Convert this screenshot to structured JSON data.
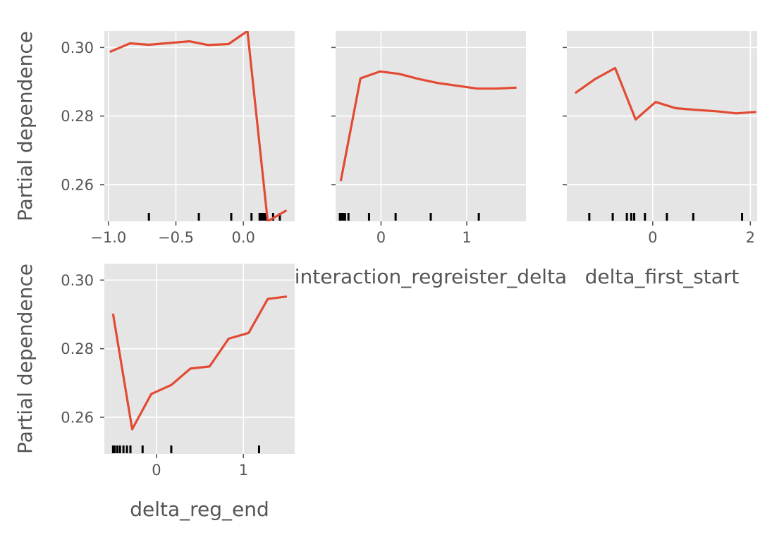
{
  "chart_data": [
    {
      "type": "line",
      "xlabel": "",
      "ylabel": "Partial dependence",
      "xlim": [
        -1.03,
        0.38
      ],
      "ylim": [
        0.2493,
        0.3048
      ],
      "xticks": [
        -1.0,
        -0.5,
        0.0
      ],
      "xtick_labels": [
        "−1.0",
        "−0.5",
        "0.0"
      ],
      "yticks": [
        0.26,
        0.28,
        0.3
      ],
      "ytick_labels": [
        "0.26",
        "0.28",
        "0.30"
      ],
      "show_ytick_labels": true,
      "line_color": "#E24A33",
      "series": [
        {
          "x": [
            -0.99,
            -0.84,
            -0.7,
            -0.55,
            -0.4,
            -0.26,
            -0.11,
            0.03,
            0.18,
            0.32
          ],
          "y": [
            0.2987,
            0.3012,
            0.3008,
            0.3013,
            0.3018,
            0.3007,
            0.301,
            0.3048,
            0.2493,
            0.2525
          ]
        }
      ],
      "rug": [
        -0.7,
        -0.33,
        -0.09,
        0.06,
        0.12,
        0.13,
        0.14,
        0.15,
        0.16,
        0.17,
        0.22,
        0.27
      ]
    },
    {
      "type": "line",
      "xlabel": "interaction_regreister_delta",
      "ylabel": "",
      "xlim": [
        -0.53,
        1.69
      ],
      "ylim": [
        0.2493,
        0.3048
      ],
      "xticks": [
        0,
        1
      ],
      "xtick_labels": [
        "0",
        "1"
      ],
      "yticks": [
        0.26,
        0.28,
        0.3
      ],
      "ytick_labels": [
        "",
        "",
        ""
      ],
      "show_ytick_labels": false,
      "line_color": "#E24A33",
      "series": [
        {
          "x": [
            -0.47,
            -0.24,
            -0.01,
            0.21,
            0.44,
            0.67,
            0.9,
            1.12,
            1.35,
            1.58
          ],
          "y": [
            0.261,
            0.291,
            0.293,
            0.2923,
            0.2908,
            0.2896,
            0.2888,
            0.288,
            0.288,
            0.2883
          ]
        }
      ],
      "rug": [
        -0.48,
        -0.46,
        -0.44,
        -0.42,
        -0.38,
        -0.14,
        0.17,
        0.58,
        1.14
      ]
    },
    {
      "type": "line",
      "xlabel": "delta_first_start",
      "ylabel": "",
      "xlim": [
        -1.76,
        2.14
      ],
      "ylim": [
        0.2493,
        0.3048
      ],
      "xticks": [
        0,
        2
      ],
      "xtick_labels": [
        "0",
        "2"
      ],
      "yticks": [
        0.26,
        0.28,
        0.3
      ],
      "ytick_labels": [
        "",
        "",
        ""
      ],
      "show_ytick_labels": false,
      "line_color": "#E24A33",
      "series": [
        {
          "x": [
            -1.59,
            -1.18,
            -0.77,
            -0.35,
            0.06,
            0.47,
            0.88,
            1.3,
            1.71,
            2.12
          ],
          "y": [
            0.2867,
            0.2908,
            0.294,
            0.279,
            0.2841,
            0.2823,
            0.2818,
            0.2814,
            0.2808,
            0.2812
          ]
        }
      ],
      "rug": [
        -1.3,
        -0.82,
        -0.53,
        -0.44,
        -0.38,
        -0.16,
        0.29,
        0.83,
        1.83
      ]
    },
    {
      "type": "line",
      "xlabel": "delta_reg_end",
      "ylabel": "Partial dependence",
      "xlim": [
        -0.6,
        1.59
      ],
      "ylim": [
        0.2493,
        0.3048
      ],
      "xticks": [
        0,
        1
      ],
      "xtick_labels": [
        "0",
        "1"
      ],
      "yticks": [
        0.26,
        0.28,
        0.3
      ],
      "ytick_labels": [
        "0.26",
        "0.28",
        "0.30"
      ],
      "show_ytick_labels": true,
      "line_color": "#E24A33",
      "series": [
        {
          "x": [
            -0.5,
            -0.28,
            -0.06,
            0.17,
            0.39,
            0.61,
            0.83,
            1.06,
            1.28,
            1.5
          ],
          "y": [
            0.2902,
            0.2565,
            0.2668,
            0.2694,
            0.2742,
            0.2748,
            0.2829,
            0.2846,
            0.2945,
            0.2952
          ]
        }
      ],
      "rug": [
        -0.5,
        -0.48,
        -0.45,
        -0.42,
        -0.38,
        -0.34,
        -0.3,
        -0.16,
        0.17,
        1.18
      ]
    }
  ]
}
